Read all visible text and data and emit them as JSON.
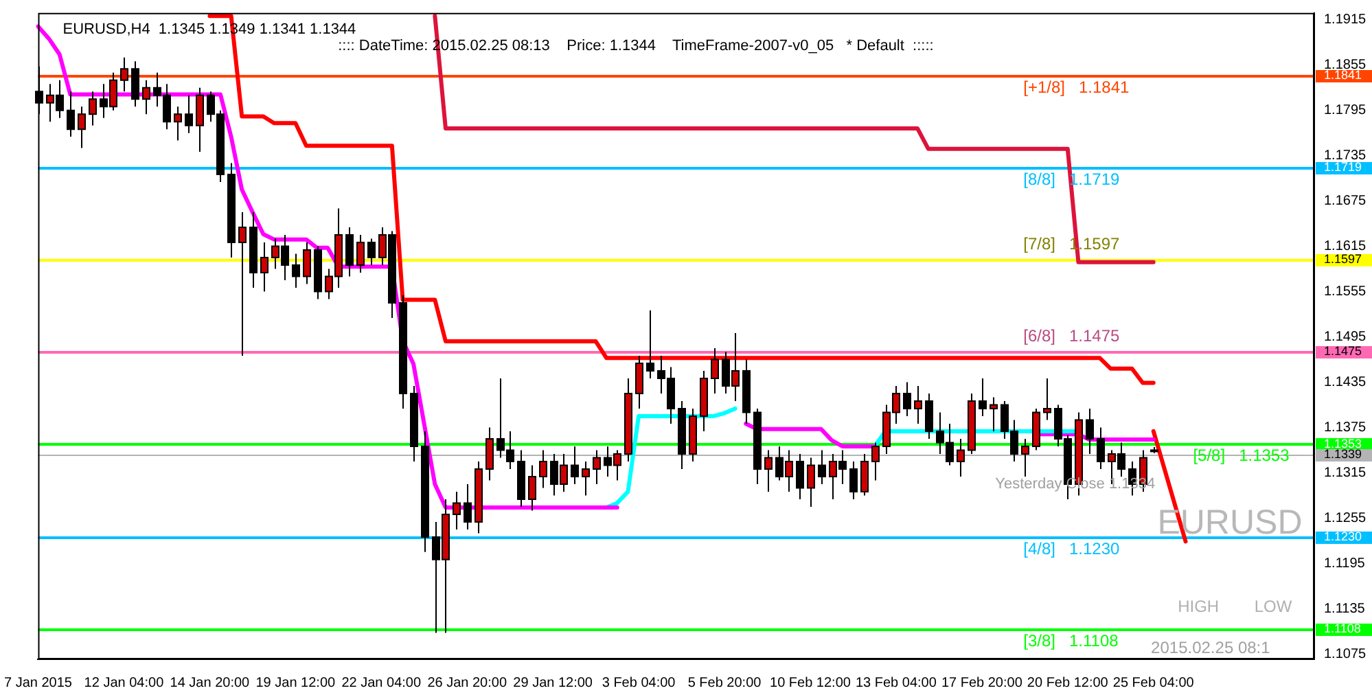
{
  "chart_data": {
    "type": "candlestick",
    "title": "EURUSD,H4  1.1345 1.1349 1.1341 1.1344",
    "annotations": [
      ":::: DateTime: 2015.02.25 08:13    Price: 1.1344    TimeFrame-2007-v0_05   * Default  :::::",
      "EURUSD",
      "HIGH",
      "LOW",
      "2015.02.25 08:1",
      "Yesterday Close 1.1334"
    ],
    "categories": [
      "7 Jan 2015",
      null,
      null,
      null,
      null,
      null,
      null,
      null,
      "12 Jan 04:00",
      null,
      null,
      null,
      null,
      null,
      null,
      null,
      "14 Jan 20:00",
      null,
      null,
      null,
      null,
      null,
      null,
      null,
      "19 Jan 12:00",
      null,
      null,
      null,
      null,
      null,
      null,
      null,
      "22 Jan 04:00",
      null,
      null,
      null,
      null,
      null,
      null,
      null,
      "26 Jan 20:00",
      null,
      null,
      null,
      null,
      null,
      null,
      null,
      "29 Jan 12:00",
      null,
      null,
      null,
      null,
      null,
      null,
      null,
      "3 Feb 04:00",
      null,
      null,
      null,
      null,
      null,
      null,
      null,
      "5 Feb 20:00",
      null,
      null,
      null,
      null,
      null,
      null,
      null,
      "10 Feb 12:00",
      null,
      null,
      null,
      null,
      null,
      null,
      null,
      "13 Feb 04:00",
      null,
      null,
      null,
      null,
      null,
      null,
      null,
      "17 Feb 20:00",
      null,
      null,
      null,
      null,
      null,
      null,
      null,
      "20 Feb 12:00",
      null,
      null,
      null,
      null,
      null,
      null,
      null,
      "25 Feb 04:00",
      null,
      null,
      null,
      null,
      null,
      null,
      null,
      null,
      null,
      null,
      null,
      null,
      null,
      null,
      null
    ],
    "ohlc": [
      [
        1.182,
        1.1853,
        1.179,
        1.1805
      ],
      [
        1.1805,
        1.183,
        1.178,
        1.1815
      ],
      [
        1.1815,
        1.1835,
        1.1785,
        1.1795
      ],
      [
        1.1795,
        1.182,
        1.176,
        1.177
      ],
      [
        1.177,
        1.18,
        1.1745,
        1.179
      ],
      [
        1.179,
        1.182,
        1.1775,
        1.181
      ],
      [
        1.181,
        1.183,
        1.1785,
        1.18
      ],
      [
        1.18,
        1.1845,
        1.1795,
        1.1835
      ],
      [
        1.1835,
        1.1865,
        1.182,
        1.185
      ],
      [
        1.185,
        1.186,
        1.18,
        1.181
      ],
      [
        1.181,
        1.1835,
        1.179,
        1.1825
      ],
      [
        1.1825,
        1.1845,
        1.18,
        1.1815
      ],
      [
        1.1815,
        1.183,
        1.177,
        1.178
      ],
      [
        1.178,
        1.18,
        1.1755,
        1.179
      ],
      [
        1.179,
        1.1815,
        1.1765,
        1.1775
      ],
      [
        1.1775,
        1.1825,
        1.174,
        1.1815
      ],
      [
        1.1815,
        1.182,
        1.178,
        1.179
      ],
      [
        1.179,
        1.1795,
        1.17,
        1.171
      ],
      [
        1.171,
        1.1725,
        1.16,
        1.162
      ],
      [
        1.162,
        1.166,
        1.147,
        1.164
      ],
      [
        1.164,
        1.166,
        1.156,
        1.158
      ],
      [
        1.158,
        1.162,
        1.1555,
        1.16
      ],
      [
        1.16,
        1.1625,
        1.1585,
        1.1615
      ],
      [
        1.1615,
        1.163,
        1.157,
        1.159
      ],
      [
        1.159,
        1.1605,
        1.156,
        1.1575
      ],
      [
        1.1575,
        1.162,
        1.1565,
        1.161
      ],
      [
        1.161,
        1.1615,
        1.1545,
        1.1555
      ],
      [
        1.1555,
        1.1585,
        1.1545,
        1.1575
      ],
      [
        1.1575,
        1.1665,
        1.156,
        1.163
      ],
      [
        1.163,
        1.164,
        1.1575,
        1.159
      ],
      [
        1.159,
        1.163,
        1.158,
        1.162
      ],
      [
        1.162,
        1.1625,
        1.159,
        1.16
      ],
      [
        1.16,
        1.164,
        1.159,
        1.163
      ],
      [
        1.163,
        1.1635,
        1.152,
        1.154
      ],
      [
        1.154,
        1.155,
        1.14,
        1.142
      ],
      [
        1.142,
        1.143,
        1.133,
        1.135
      ],
      [
        1.135,
        1.137,
        1.121,
        1.123
      ],
      [
        1.123,
        1.125,
        1.1103,
        1.12
      ],
      [
        1.12,
        1.128,
        1.1103,
        1.126
      ],
      [
        1.126,
        1.129,
        1.124,
        1.1275
      ],
      [
        1.1275,
        1.13,
        1.124,
        1.125
      ],
      [
        1.125,
        1.133,
        1.1235,
        1.132
      ],
      [
        1.132,
        1.1375,
        1.1305,
        1.136
      ],
      [
        1.136,
        1.144,
        1.1335,
        1.1345
      ],
      [
        1.1345,
        1.137,
        1.132,
        1.133
      ],
      [
        1.133,
        1.1345,
        1.127,
        1.128
      ],
      [
        1.128,
        1.1325,
        1.1265,
        1.131
      ],
      [
        1.131,
        1.1345,
        1.1295,
        1.133
      ],
      [
        1.133,
        1.134,
        1.1285,
        1.13
      ],
      [
        1.13,
        1.134,
        1.129,
        1.1325
      ],
      [
        1.1325,
        1.135,
        1.13,
        1.131
      ],
      [
        1.131,
        1.133,
        1.1285,
        1.132
      ],
      [
        1.132,
        1.1345,
        1.13,
        1.1335
      ],
      [
        1.1335,
        1.135,
        1.131,
        1.1325
      ],
      [
        1.1325,
        1.1345,
        1.1305,
        1.134
      ],
      [
        1.134,
        1.144,
        1.133,
        1.142
      ],
      [
        1.142,
        1.147,
        1.14,
        1.146
      ],
      [
        1.146,
        1.153,
        1.144,
        1.145
      ],
      [
        1.145,
        1.147,
        1.142,
        1.144
      ],
      [
        1.144,
        1.1455,
        1.138,
        1.14
      ],
      [
        1.14,
        1.141,
        1.132,
        1.134
      ],
      [
        1.134,
        1.14,
        1.133,
        1.139
      ],
      [
        1.139,
        1.145,
        1.137,
        1.144
      ],
      [
        1.144,
        1.148,
        1.142,
        1.1465
      ],
      [
        1.1465,
        1.1475,
        1.142,
        1.143
      ],
      [
        1.143,
        1.15,
        1.141,
        1.145
      ],
      [
        1.145,
        1.1465,
        1.138,
        1.1395
      ],
      [
        1.1395,
        1.14,
        1.13,
        1.132
      ],
      [
        1.132,
        1.1345,
        1.129,
        1.1335
      ],
      [
        1.1335,
        1.135,
        1.1305,
        1.131
      ],
      [
        1.131,
        1.1345,
        1.129,
        1.133
      ],
      [
        1.133,
        1.134,
        1.128,
        1.1295
      ],
      [
        1.1295,
        1.1335,
        1.127,
        1.1325
      ],
      [
        1.1325,
        1.1345,
        1.13,
        1.131
      ],
      [
        1.131,
        1.134,
        1.128,
        1.133
      ],
      [
        1.133,
        1.1345,
        1.13,
        1.132
      ],
      [
        1.132,
        1.133,
        1.128,
        1.129
      ],
      [
        1.129,
        1.134,
        1.1285,
        1.133
      ],
      [
        1.133,
        1.1355,
        1.1305,
        1.135
      ],
      [
        1.135,
        1.1405,
        1.134,
        1.1395
      ],
      [
        1.1395,
        1.143,
        1.138,
        1.142
      ],
      [
        1.142,
        1.1435,
        1.139,
        1.14
      ],
      [
        1.14,
        1.143,
        1.138,
        1.141
      ],
      [
        1.141,
        1.142,
        1.136,
        1.137
      ],
      [
        1.137,
        1.1395,
        1.134,
        1.1355
      ],
      [
        1.1355,
        1.138,
        1.1325,
        1.133
      ],
      [
        1.133,
        1.136,
        1.131,
        1.1345
      ],
      [
        1.1345,
        1.142,
        1.134,
        1.141
      ],
      [
        1.141,
        1.144,
        1.139,
        1.14
      ],
      [
        1.14,
        1.1415,
        1.137,
        1.1405
      ],
      [
        1.1405,
        1.141,
        1.136,
        1.137
      ],
      [
        1.137,
        1.1385,
        1.133,
        1.134
      ],
      [
        1.134,
        1.136,
        1.131,
        1.135
      ],
      [
        1.135,
        1.14,
        1.1345,
        1.1395
      ],
      [
        1.1395,
        1.144,
        1.1385,
        1.14
      ],
      [
        1.14,
        1.1405,
        1.135,
        1.136
      ],
      [
        1.136,
        1.1365,
        1.128,
        1.13
      ],
      [
        1.13,
        1.1395,
        1.1285,
        1.1385
      ],
      [
        1.1385,
        1.14,
        1.134,
        1.136
      ],
      [
        1.136,
        1.1375,
        1.132,
        1.133
      ],
      [
        1.133,
        1.1345,
        1.13,
        1.134
      ],
      [
        1.134,
        1.1355,
        1.131,
        1.132
      ],
      [
        1.132,
        1.133,
        1.1285,
        1.13
      ],
      [
        1.13,
        1.1345,
        1.129,
        1.1335
      ],
      [
        1.1345,
        1.1349,
        1.1341,
        1.1344
      ],
      null,
      null,
      null,
      null,
      null,
      null,
      null,
      null,
      null,
      null,
      null,
      null,
      null,
      null,
      null
    ],
    "series": [
      {
        "type": "line",
        "color": "#ff0000",
        "values": [
          null,
          null,
          null,
          null,
          null,
          null,
          null,
          null,
          null,
          null,
          null,
          null,
          null,
          null,
          null,
          null,
          1.192,
          1.192,
          1.192,
          1.1787,
          1.1787,
          1.1787,
          1.1778,
          1.1778,
          1.1778,
          1.1748,
          1.1748,
          1.1748,
          1.1748,
          1.1748,
          1.1748,
          1.1748,
          1.1748,
          1.1748,
          1.1544,
          1.1544,
          1.1544,
          1.1544,
          1.1489,
          1.1489,
          1.1489,
          1.1489,
          1.1489,
          1.1489,
          1.1489,
          1.1489,
          1.1489,
          1.1489,
          1.1489,
          1.1489,
          1.1489,
          1.1489,
          1.1489,
          1.1467,
          1.1467,
          1.1467,
          1.1467,
          1.1467,
          1.1467,
          1.1467,
          1.1467,
          1.1467,
          1.1467,
          1.1467,
          1.1467,
          1.1467,
          1.1467,
          1.1467,
          1.1467,
          1.1467,
          1.1467,
          1.1467,
          1.1467,
          1.1467,
          1.1467,
          1.1467,
          1.1467,
          1.1467,
          1.1467,
          1.1467,
          1.1467,
          1.1467,
          1.1467,
          1.1467,
          1.1467,
          1.1467,
          1.1467,
          1.1467,
          1.1467,
          1.1467,
          1.1467,
          1.1467,
          1.1467,
          1.1467,
          1.1467,
          1.1467,
          1.1467,
          1.1467,
          1.1467,
          1.1467,
          1.1453,
          1.1453,
          1.1453,
          1.1434,
          1.1434,
          null,
          null,
          null,
          null,
          null,
          null,
          null,
          null,
          null,
          null,
          null,
          null,
          null,
          null,
          null
        ]
      },
      {
        "type": "line",
        "color": "#dc143c",
        "values": [
          null,
          null,
          null,
          null,
          null,
          null,
          null,
          null,
          null,
          null,
          null,
          null,
          null,
          null,
          null,
          null,
          null,
          null,
          null,
          null,
          null,
          null,
          null,
          null,
          null,
          null,
          null,
          null,
          null,
          null,
          null,
          null,
          null,
          null,
          null,
          null,
          null,
          1.192,
          1.1771,
          1.1771,
          1.1771,
          1.1771,
          1.1771,
          1.1771,
          1.1771,
          1.1771,
          1.1771,
          1.1771,
          1.1771,
          1.1771,
          1.1771,
          1.1771,
          1.1771,
          1.1771,
          1.1771,
          1.1771,
          1.1771,
          1.1771,
          1.1771,
          1.1771,
          1.1771,
          1.1771,
          1.1771,
          1.1771,
          1.1771,
          1.1771,
          1.1771,
          1.1771,
          1.1771,
          1.1771,
          1.1771,
          1.1771,
          1.1771,
          1.1771,
          1.1771,
          1.1771,
          1.1771,
          1.1771,
          1.1771,
          1.1771,
          1.1771,
          1.1771,
          1.1771,
          1.1744,
          1.1744,
          1.1744,
          1.1744,
          1.1744,
          1.1744,
          1.1744,
          1.1744,
          1.1744,
          1.1744,
          1.1744,
          1.1744,
          1.1744,
          1.1744,
          1.1594,
          1.1594,
          1.1594,
          1.1594,
          1.1594,
          1.1594,
          1.1594,
          1.1594,
          null,
          null,
          null,
          null,
          null,
          null,
          null,
          null,
          null,
          null,
          null,
          null,
          null,
          null,
          null
        ]
      },
      {
        "type": "line",
        "color": "#ff00ff",
        "values": [
          1.1906,
          1.189,
          1.1869,
          1.1816,
          1.1816,
          1.1816,
          1.1816,
          1.1816,
          1.1816,
          1.1816,
          1.1816,
          1.1816,
          1.1816,
          1.1816,
          1.1816,
          1.1816,
          1.1816,
          1.1816,
          1.176,
          1.169,
          1.166,
          1.1631,
          1.1624,
          1.1624,
          1.1624,
          1.1624,
          1.1613,
          1.1613,
          1.1588,
          1.1588,
          1.1588,
          1.1588,
          1.1588,
          1.1588,
          1.149,
          1.1459,
          null,
          1.13,
          1.1269,
          1.1269,
          1.1269,
          1.1269,
          1.1269,
          1.1269,
          1.1269,
          1.1269,
          1.1269,
          1.1269,
          1.1269,
          1.1269,
          1.1269,
          1.1269,
          1.1269,
          1.1269,
          1.1269,
          null,
          null,
          null,
          null,
          null,
          null,
          null,
          null,
          null,
          null,
          null,
          null,
          null,
          null,
          null,
          null,
          null,
          null,
          null,
          null,
          null,
          null,
          null,
          null,
          null,
          null,
          null,
          null,
          null,
          null,
          null,
          null,
          null,
          null,
          null,
          null,
          null,
          null,
          null,
          null,
          null,
          null,
          null,
          null,
          null,
          null,
          null,
          null,
          null,
          null,
          null,
          null,
          null,
          null,
          null,
          null,
          null,
          null,
          null,
          null,
          null,
          null,
          null,
          null,
          null
        ]
      },
      {
        "type": "line",
        "color": "#00ffff",
        "values": [
          null,
          null,
          null,
          null,
          null,
          null,
          null,
          null,
          null,
          null,
          null,
          null,
          null,
          null,
          null,
          null,
          null,
          null,
          null,
          null,
          null,
          null,
          null,
          null,
          null,
          null,
          null,
          null,
          null,
          null,
          null,
          null,
          null,
          null,
          null,
          null,
          null,
          null,
          null,
          null,
          null,
          null,
          null,
          null,
          null,
          null,
          null,
          null,
          null,
          null,
          null,
          null,
          null,
          1.1269,
          1.1275,
          1.129,
          1.139,
          1.139,
          1.139,
          1.139,
          1.139,
          1.139,
          1.139,
          1.139,
          1.1394,
          1.14,
          null,
          null,
          null,
          null,
          null,
          null,
          null,
          null,
          null,
          null,
          null,
          null,
          null,
          null,
          null,
          null,
          null,
          null,
          null,
          null,
          null,
          null,
          null,
          null,
          null,
          null,
          null,
          null,
          null,
          null,
          null,
          null,
          null,
          null,
          null,
          null,
          null,
          null,
          null,
          null,
          null,
          null,
          null,
          null,
          null,
          null,
          null,
          null,
          null,
          null,
          null,
          null,
          null,
          null
        ]
      },
      {
        "type": "line",
        "color": "#ff00ff",
        "values": [
          null,
          null,
          null,
          null,
          null,
          null,
          null,
          null,
          null,
          null,
          null,
          null,
          null,
          null,
          null,
          null,
          null,
          null,
          null,
          null,
          null,
          null,
          null,
          null,
          null,
          null,
          null,
          null,
          null,
          null,
          null,
          null,
          null,
          null,
          null,
          null,
          null,
          null,
          null,
          null,
          null,
          null,
          null,
          null,
          null,
          null,
          null,
          null,
          null,
          null,
          null,
          null,
          null,
          null,
          null,
          null,
          null,
          null,
          null,
          null,
          null,
          null,
          null,
          null,
          null,
          null,
          1.138,
          1.1373,
          1.1373,
          1.1373,
          1.1373,
          1.1373,
          1.1373,
          1.1373,
          1.1358,
          1.135,
          1.135,
          1.135,
          1.135,
          null,
          null,
          null,
          null,
          null,
          null,
          null,
          null,
          null,
          null,
          null,
          null,
          null,
          null,
          null,
          null,
          null,
          null,
          null,
          null,
          null,
          null,
          null,
          null,
          null,
          null,
          null,
          null,
          null,
          null,
          null,
          null,
          null,
          null,
          null,
          null,
          null,
          null,
          null,
          null,
          null
        ]
      },
      {
        "type": "line",
        "color": "#00ffff",
        "values": [
          null,
          null,
          null,
          null,
          null,
          null,
          null,
          null,
          null,
          null,
          null,
          null,
          null,
          null,
          null,
          null,
          null,
          null,
          null,
          null,
          null,
          null,
          null,
          null,
          null,
          null,
          null,
          null,
          null,
          null,
          null,
          null,
          null,
          null,
          null,
          null,
          null,
          null,
          null,
          null,
          null,
          null,
          null,
          null,
          null,
          null,
          null,
          null,
          null,
          null,
          null,
          null,
          null,
          null,
          null,
          null,
          null,
          null,
          null,
          null,
          null,
          null,
          null,
          null,
          null,
          null,
          null,
          null,
          null,
          null,
          null,
          null,
          null,
          null,
          null,
          null,
          null,
          null,
          1.135,
          1.137,
          1.137,
          1.137,
          1.137,
          1.137,
          1.137,
          1.137,
          1.137,
          1.137,
          1.137,
          1.137,
          1.137,
          1.137,
          1.137,
          1.137,
          1.137,
          1.137,
          1.137,
          1.137,
          null,
          null,
          null,
          null,
          null,
          null,
          null,
          null,
          null,
          null,
          null,
          null,
          null,
          null,
          null,
          null,
          null,
          null,
          null,
          null,
          null,
          null
        ]
      },
      {
        "type": "line",
        "color": "#ff00ff",
        "values": [
          null,
          null,
          null,
          null,
          null,
          null,
          null,
          null,
          null,
          null,
          null,
          null,
          null,
          null,
          null,
          null,
          null,
          null,
          null,
          null,
          null,
          null,
          null,
          null,
          null,
          null,
          null,
          null,
          null,
          null,
          null,
          null,
          null,
          null,
          null,
          null,
          null,
          null,
          null,
          null,
          null,
          null,
          null,
          null,
          null,
          null,
          null,
          null,
          null,
          null,
          null,
          null,
          null,
          null,
          null,
          null,
          null,
          null,
          null,
          null,
          null,
          null,
          null,
          null,
          null,
          null,
          null,
          null,
          null,
          null,
          null,
          null,
          null,
          null,
          null,
          null,
          null,
          null,
          null,
          null,
          null,
          null,
          null,
          null,
          null,
          null,
          null,
          null,
          null,
          null,
          null,
          null,
          null,
          1.1366,
          1.1366,
          1.1366,
          1.1366,
          1.1366,
          1.1359,
          1.1359,
          1.1359,
          1.1359,
          1.1359,
          1.1359,
          1.1359,
          null,
          null,
          null,
          null,
          null,
          null,
          null,
          null,
          null,
          null,
          null,
          null,
          null,
          null,
          null
        ]
      },
      {
        "type": "line",
        "color": "#ff0000",
        "values": [
          null,
          null,
          null,
          null,
          null,
          null,
          null,
          null,
          null,
          null,
          null,
          null,
          null,
          null,
          null,
          null,
          null,
          null,
          null,
          null,
          null,
          null,
          null,
          null,
          null,
          null,
          null,
          null,
          null,
          null,
          null,
          null,
          null,
          null,
          null,
          null,
          null,
          null,
          null,
          null,
          null,
          null,
          null,
          null,
          null,
          null,
          null,
          null,
          null,
          null,
          null,
          null,
          null,
          null,
          null,
          null,
          null,
          null,
          null,
          null,
          null,
          null,
          null,
          null,
          null,
          null,
          null,
          null,
          null,
          null,
          null,
          null,
          null,
          null,
          null,
          null,
          null,
          null,
          null,
          null,
          null,
          null,
          null,
          null,
          null,
          null,
          null,
          null,
          null,
          null,
          null,
          null,
          null,
          null,
          null,
          null,
          null,
          null,
          null,
          null,
          null,
          null,
          null,
          null,
          1.137,
          null,
          null,
          1.1224,
          null,
          null,
          null,
          null,
          null,
          null,
          null,
          null,
          null,
          null,
          null,
          null
        ]
      }
    ],
    "ref_lines": [
      {
        "axis": "y",
        "value": 1.1841,
        "label": "[+1/8]   1.1841",
        "color": "#ff4500"
      },
      {
        "axis": "y",
        "value": 1.1719,
        "label": "[8/8]   1.1719",
        "color": "#00bfff"
      },
      {
        "axis": "y",
        "value": 1.1597,
        "label": "[7/8]   1.1597",
        "color": "#ffff00"
      },
      {
        "axis": "y",
        "value": 1.1475,
        "label": "[6/8]   1.1475",
        "color": "#ff69b4"
      },
      {
        "axis": "y",
        "value": 1.1353,
        "label": "[5/8]   1.1353",
        "color": "#00ff00"
      },
      {
        "axis": "y",
        "value": 1.123,
        "label": "[4/8]   1.1230",
        "color": "#00bfff"
      },
      {
        "axis": "y",
        "value": 1.1108,
        "label": "[3/8]   1.1108",
        "color": "#00ff00"
      },
      {
        "axis": "y",
        "value": 1.1339,
        "label": null,
        "color": "#b4b4b4"
      }
    ],
    "ylim": [
      1.1068,
      1.1924
    ],
    "yticks": [
      1.1075,
      1.1135,
      1.1195,
      1.1255,
      1.1315,
      1.1375,
      1.1435,
      1.1495,
      1.1555,
      1.1615,
      1.1675,
      1.1735,
      1.1795,
      1.1855,
      1.1915,
      1.1841,
      1.1719,
      1.1597,
      1.1475,
      1.1353,
      1.1339,
      {
        "value": 1.123,
        "label": "1.1230"
      },
      1.1108
    ],
    "grid": false,
    "legend": false
  }
}
